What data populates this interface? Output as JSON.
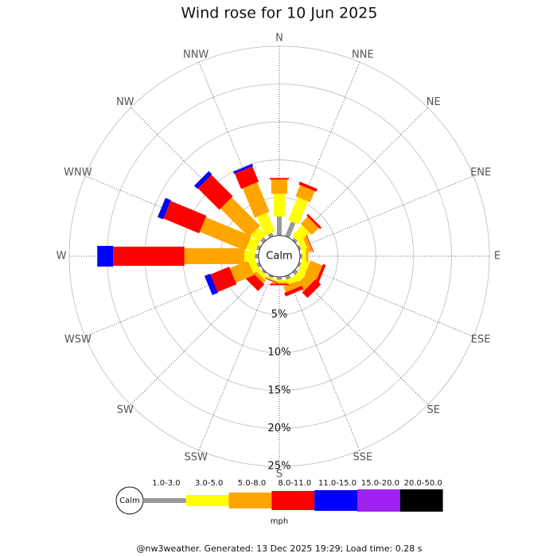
{
  "chart_data": {
    "type": "windrose",
    "title": "Wind rose for 10 Jun 2025",
    "directions": [
      "N",
      "NNE",
      "NE",
      "ENE",
      "E",
      "ESE",
      "SE",
      "SSE",
      "S",
      "SSW",
      "SW",
      "WSW",
      "W",
      "WNW",
      "NW",
      "NNW"
    ],
    "series": [
      {
        "name": "1.0-3.0",
        "color": "#999999",
        "values": [
          2.5,
          2.1,
          0.4,
          0.3,
          0.3,
          0.3,
          0.5,
          0.5,
          0.4,
          0.3,
          0.3,
          0.4,
          0.5,
          0.4,
          0.5,
          0.5
        ]
      },
      {
        "name": "3.0-5.0",
        "color": "#ffff00",
        "values": [
          3.0,
          3.3,
          1.9,
          0.8,
          0.5,
          1.0,
          1.0,
          0.7,
          0.3,
          0.2,
          0.5,
          0.9,
          1.4,
          1.3,
          1.4,
          2.7
        ]
      },
      {
        "name": "5.0-8.0",
        "color": "#ffa500",
        "values": [
          1.9,
          1.6,
          1.3,
          0.5,
          0.3,
          1.7,
          1.3,
          0.8,
          0.2,
          0.1,
          0.5,
          2.6,
          7.9,
          6.5,
          5.3,
          4.2
        ]
      },
      {
        "name": "8.0-11.0",
        "color": "#ff0000",
        "values": [
          0.2,
          0.4,
          0.3,
          0.1,
          0,
          0.4,
          1.0,
          0.5,
          0.2,
          0.1,
          1.2,
          2.7,
          9.4,
          5.1,
          4.0,
          2.2
        ]
      },
      {
        "name": "11.0-15.0",
        "color": "#0000ff",
        "values": [
          0,
          0,
          0,
          0,
          0,
          0,
          0,
          0,
          0,
          0,
          0,
          0.8,
          2.1,
          0.8,
          0.6,
          0.3
        ]
      },
      {
        "name": "15.0-20.0",
        "color": "#a020f0",
        "values": [
          0,
          0,
          0,
          0,
          0,
          0,
          0,
          0,
          0,
          0,
          0,
          0,
          0,
          0,
          0,
          0
        ]
      },
      {
        "name": "20.0-50.0",
        "color": "#000000",
        "values": [
          0,
          0,
          0,
          0,
          0,
          0,
          0,
          0,
          0,
          0,
          0,
          0,
          0,
          0,
          0,
          0
        ]
      }
    ],
    "rlim": [
      0,
      25
    ],
    "rticks": [
      {
        "value": 5,
        "label": "5%"
      },
      {
        "value": 10,
        "label": "10%"
      },
      {
        "value": 15,
        "label": "15%"
      },
      {
        "value": 20,
        "label": "20%"
      },
      {
        "value": 25,
        "label": "25%"
      }
    ],
    "calm_label": "Calm",
    "unit_label": "mph",
    "footer": "@nw3weather. Generated: 13 Dec 2025 19:29; Load time: 0.28 s"
  }
}
